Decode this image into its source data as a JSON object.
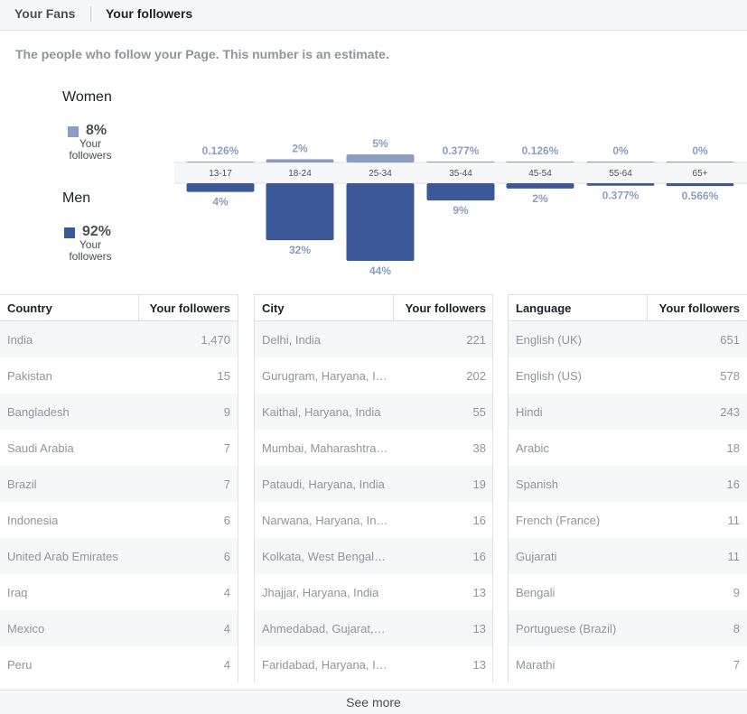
{
  "tabs": {
    "fans": "Your Fans",
    "followers": "Your followers"
  },
  "subtitle": "The people who follow your Page. This number is an estimate.",
  "gender": {
    "women": {
      "title": "Women",
      "pct": "8%",
      "label": "Your followers",
      "color": "#8b9dc3"
    },
    "men": {
      "title": "Men",
      "pct": "92%",
      "label": "Your followers",
      "color": "#3b5998"
    }
  },
  "chart_data": {
    "type": "bar",
    "categories": [
      "13-17",
      "18-24",
      "25-34",
      "35-44",
      "45-54",
      "55-64",
      "65+"
    ],
    "series": [
      {
        "name": "Women",
        "values": [
          0.126,
          2,
          5,
          0.377,
          0.126,
          0,
          0
        ],
        "labels": [
          "0.126%",
          "2%",
          "5%",
          "0.377%",
          "0.126%",
          "0%",
          "0%"
        ],
        "color": "#8b9dc3"
      },
      {
        "name": "Men",
        "values": [
          4,
          32,
          44,
          9,
          2,
          0.377,
          0.566
        ],
        "labels": [
          "4%",
          "32%",
          "44%",
          "9%",
          "2%",
          "0.377%",
          "0.566%"
        ],
        "color": "#3b5998"
      }
    ]
  },
  "tables": {
    "country": {
      "header": "Country",
      "value_header": "Your followers",
      "rows": [
        [
          "India",
          "1,470"
        ],
        [
          "Pakistan",
          "15"
        ],
        [
          "Bangladesh",
          "9"
        ],
        [
          "Saudi Arabia",
          "7"
        ],
        [
          "Brazil",
          "7"
        ],
        [
          "Indonesia",
          "6"
        ],
        [
          "United Arab Emirates",
          "6"
        ],
        [
          "Iraq",
          "4"
        ],
        [
          "Mexico",
          "4"
        ],
        [
          "Peru",
          "4"
        ]
      ]
    },
    "city": {
      "header": "City",
      "value_header": "Your followers",
      "rows": [
        [
          "Delhi, India",
          "221"
        ],
        [
          "Gurugram, Haryana, In...",
          "202"
        ],
        [
          "Kaithal, Haryana, India",
          "55"
        ],
        [
          "Mumbai, Maharashtra, ...",
          "38"
        ],
        [
          "Pataudi, Haryana, India",
          "19"
        ],
        [
          "Narwana, Haryana, India",
          "16"
        ],
        [
          "Kolkata, West Bengal, I...",
          "16"
        ],
        [
          "Jhajjar, Haryana, India",
          "13"
        ],
        [
          "Ahmedabad, Gujarat, I...",
          "13"
        ],
        [
          "Faridabad, Haryana, In...",
          "13"
        ]
      ]
    },
    "language": {
      "header": "Language",
      "value_header": "Your followers",
      "rows": [
        [
          "English (UK)",
          "651"
        ],
        [
          "English (US)",
          "578"
        ],
        [
          "Hindi",
          "243"
        ],
        [
          "Arabic",
          "18"
        ],
        [
          "Spanish",
          "16"
        ],
        [
          "French (France)",
          "11"
        ],
        [
          "Gujarati",
          "11"
        ],
        [
          "Bengali",
          "9"
        ],
        [
          "Portuguese (Brazil)",
          "8"
        ],
        [
          "Marathi",
          "7"
        ]
      ]
    }
  },
  "see_more": "See more"
}
